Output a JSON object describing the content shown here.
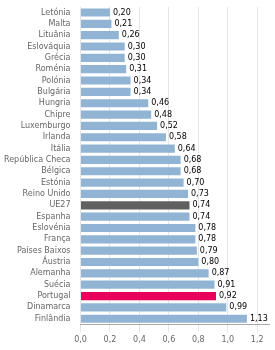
{
  "chart_data": {
    "type": "bar",
    "orientation": "horizontal",
    "categories": [
      "Letónia",
      "Malta",
      "Lituânia",
      "Eslováquia",
      "Grécia",
      "Roménia",
      "Polónia",
      "Bulgária",
      "Hungria",
      "Chipre",
      "Luxemburgo",
      "Irlanda",
      "Itália",
      "República Checa",
      "Bélgica",
      "Estónia",
      "Reino Unido",
      "UE27",
      "Espanha",
      "Eslovénia",
      "França",
      "Países Baixos",
      "Áustria",
      "Alemanha",
      "Suécia",
      "Portugal",
      "Dinamarca",
      "Finlândia"
    ],
    "values": [
      0.2,
      0.21,
      0.26,
      0.3,
      0.3,
      0.31,
      0.34,
      0.34,
      0.46,
      0.48,
      0.52,
      0.58,
      0.64,
      0.68,
      0.68,
      0.7,
      0.73,
      0.74,
      0.74,
      0.78,
      0.78,
      0.79,
      0.8,
      0.87,
      0.91,
      0.92,
      0.99,
      1.13
    ],
    "value_labels": [
      "0,20",
      "0,21",
      "0,26",
      "0,30",
      "0,30",
      "0,31",
      "0,34",
      "0,34",
      "0,46",
      "0,48",
      "0,52",
      "0,58",
      "0,64",
      "0,68",
      "0,68",
      "0,70",
      "0,73",
      "0,74",
      "0,74",
      "0,78",
      "0,78",
      "0,79",
      "0,80",
      "0,87",
      "0,91",
      "0,92",
      "0,99",
      "1,13"
    ],
    "colors": [
      "#92b4d4",
      "#92b4d4",
      "#92b4d4",
      "#92b4d4",
      "#92b4d4",
      "#92b4d4",
      "#92b4d4",
      "#92b4d4",
      "#92b4d4",
      "#92b4d4",
      "#92b4d4",
      "#92b4d4",
      "#92b4d4",
      "#92b4d4",
      "#92b4d4",
      "#92b4d4",
      "#92b4d4",
      "#606060",
      "#92b4d4",
      "#92b4d4",
      "#92b4d4",
      "#92b4d4",
      "#92b4d4",
      "#92b4d4",
      "#92b4d4",
      "#e8005a",
      "#92b4d4",
      "#92b4d4"
    ],
    "data_labels": true,
    "xlim": [
      0,
      1.28
    ],
    "xticks": [
      {
        "value": 0,
        "label": "0,0"
      },
      {
        "value": 0.2,
        "label": "0,2"
      },
      {
        "value": 0.4,
        "label": "0,4"
      },
      {
        "value": 0.6,
        "label": "0,6"
      },
      {
        "value": 0.8,
        "label": "0,8"
      },
      {
        "value": 1.0,
        "label": "1,0"
      },
      {
        "value": 1.2,
        "label": "1,2"
      }
    ],
    "grid": true
  }
}
